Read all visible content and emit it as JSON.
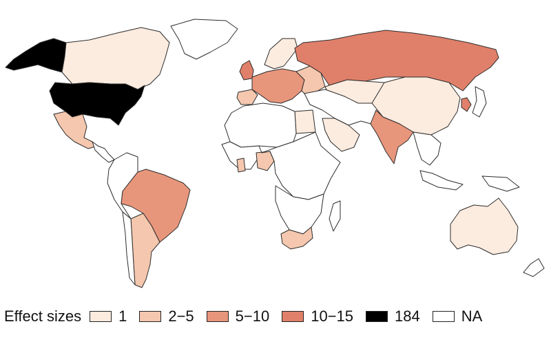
{
  "legend": {
    "title": "Effect sizes",
    "items": [
      {
        "label": "1",
        "color": "#fcebdf"
      },
      {
        "label": "2−5",
        "color": "#f4c7ae"
      },
      {
        "label": "5−10",
        "color": "#e8967b"
      },
      {
        "label": "10−15",
        "color": "#e0806a"
      },
      {
        "label": "184",
        "color": "#000000"
      },
      {
        "label": "NA",
        "color": "#ffffff"
      }
    ]
  },
  "regions": [
    {
      "name": "alaska",
      "value": "184"
    },
    {
      "name": "canada",
      "value": "1"
    },
    {
      "name": "greenland",
      "value": "NA"
    },
    {
      "name": "usa",
      "value": "184"
    },
    {
      "name": "mexico",
      "value": "2−5"
    },
    {
      "name": "central-america",
      "value": "NA"
    },
    {
      "name": "brazil",
      "value": "5−10"
    },
    {
      "name": "argentina",
      "value": "2−5"
    },
    {
      "name": "chile",
      "value": "NA"
    },
    {
      "name": "south-america-west",
      "value": "NA"
    },
    {
      "name": "uk",
      "value": "10−15"
    },
    {
      "name": "iberia",
      "value": "2−5"
    },
    {
      "name": "western-europe",
      "value": "5−10"
    },
    {
      "name": "scandinavia",
      "value": "1"
    },
    {
      "name": "eastern-europe",
      "value": "2−5"
    },
    {
      "name": "russia",
      "value": "10−15"
    },
    {
      "name": "kazakhstan",
      "value": "1"
    },
    {
      "name": "china",
      "value": "1"
    },
    {
      "name": "korea",
      "value": "10−15"
    },
    {
      "name": "japan",
      "value": "NA"
    },
    {
      "name": "india",
      "value": "5−10"
    },
    {
      "name": "middle-east",
      "value": "NA"
    },
    {
      "name": "saudi-arabia",
      "value": "1"
    },
    {
      "name": "egypt",
      "value": "1"
    },
    {
      "name": "north-africa",
      "value": "NA"
    },
    {
      "name": "west-africa",
      "value": "NA"
    },
    {
      "name": "ghana",
      "value": "2−5"
    },
    {
      "name": "nigeria",
      "value": "2−5"
    },
    {
      "name": "central-east-africa",
      "value": "NA"
    },
    {
      "name": "southern-africa",
      "value": "NA"
    },
    {
      "name": "south-africa",
      "value": "2−5"
    },
    {
      "name": "madagascar",
      "value": "NA"
    },
    {
      "name": "southeast-asia",
      "value": "NA"
    },
    {
      "name": "indonesia",
      "value": "NA"
    },
    {
      "name": "papua",
      "value": "NA"
    },
    {
      "name": "australia",
      "value": "1"
    },
    {
      "name": "new-zealand",
      "value": "NA"
    }
  ]
}
